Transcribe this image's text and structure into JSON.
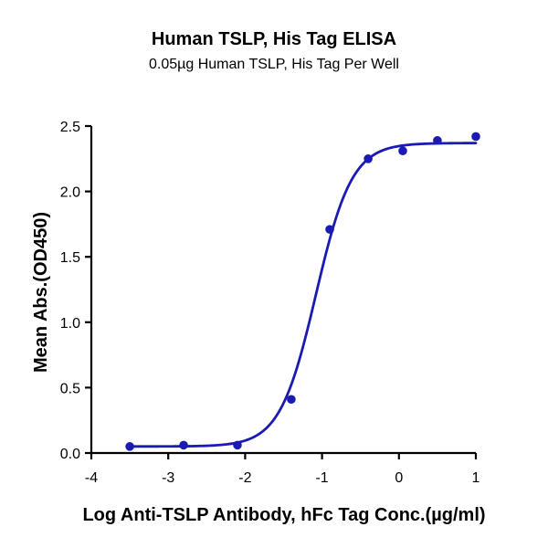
{
  "chart_data": {
    "type": "scatter",
    "title": "Human TSLP, His Tag ELISA",
    "subtitle": "0.05µg Human TSLP, His Tag Per Well",
    "xlabel": "Log Anti-TSLP Antibody, hFc Tag Conc.(µg/ml)",
    "ylabel": "Mean Abs.(OD450)",
    "xlim": [
      -4,
      1
    ],
    "ylim": [
      0,
      2.5
    ],
    "xticks": [
      "-4",
      "-3",
      "-2",
      "-1",
      "0",
      "1"
    ],
    "yticks": [
      "0.0",
      "0.5",
      "1.0",
      "1.5",
      "2.0",
      "2.5"
    ],
    "grid": false,
    "legend": "none",
    "series": [
      {
        "x": [
          -3.5,
          -2.8,
          -2.1,
          -1.4,
          -0.9,
          -0.4,
          0.05,
          0.5,
          1.0
        ],
        "y": [
          0.05,
          0.06,
          0.06,
          0.41,
          1.71,
          2.25,
          2.31,
          2.39,
          2.42
        ],
        "color": "#1b1bb3"
      }
    ],
    "fit_curve": {
      "model": "4PL",
      "bottom": 0.05,
      "top": 2.37,
      "log_ec50": -1.08,
      "hill_slope": 1.85,
      "x_range": [
        -3.5,
        1.0
      ],
      "color": "#1b1bb3"
    }
  }
}
